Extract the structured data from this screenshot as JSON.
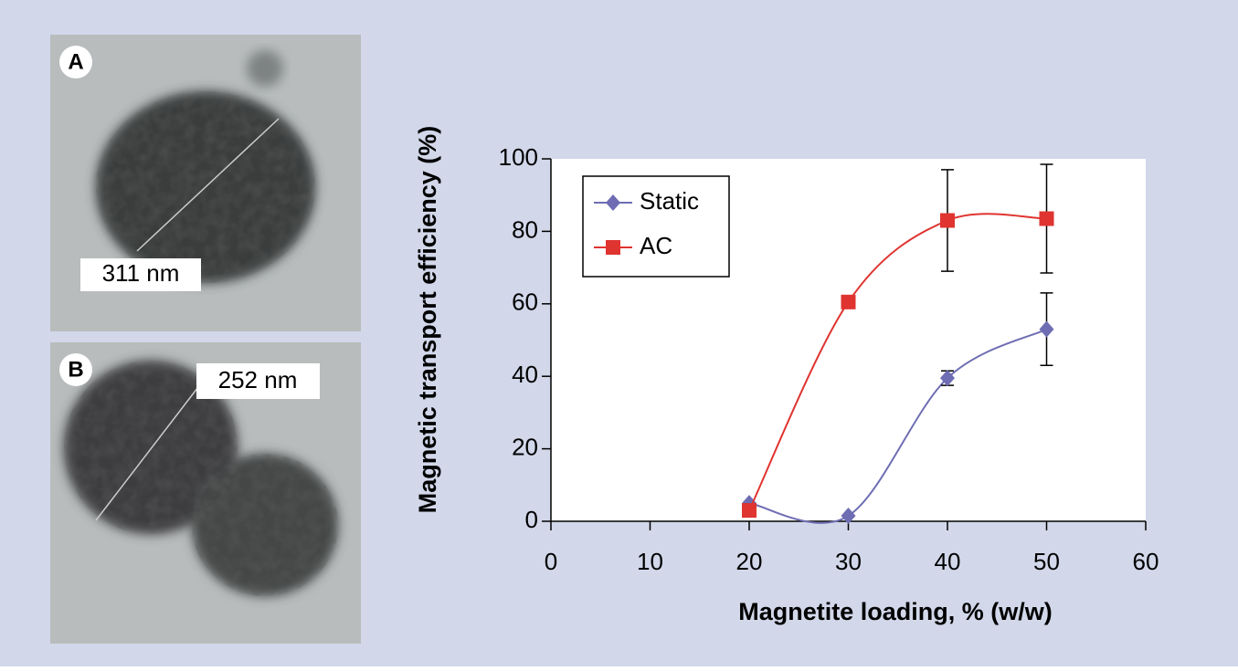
{
  "panels": [
    {
      "label": "A",
      "scale": "311 nm"
    },
    {
      "label": "B",
      "scale": "252 nm"
    }
  ],
  "chart_data": {
    "type": "line",
    "xlabel": "Magnetite loading, % (w/w)",
    "ylabel": "Magnetic transport efficiency (%)",
    "x": [
      20,
      30,
      40,
      50
    ],
    "series": [
      {
        "name": "Static",
        "color": "#6e6db3",
        "marker": "diamond",
        "values": [
          5,
          1.5,
          39.5,
          53
        ],
        "errors": [
          null,
          null,
          2,
          10
        ]
      },
      {
        "name": "AC",
        "color": "#df3430",
        "marker": "square",
        "values": [
          3,
          60.5,
          83,
          83.5
        ],
        "errors": [
          null,
          null,
          14,
          15
        ]
      }
    ],
    "xlim": [
      0,
      60
    ],
    "ylim": [
      0,
      100
    ],
    "xticks": [
      0,
      10,
      20,
      30,
      40,
      50,
      60
    ],
    "yticks": [
      0,
      20,
      40,
      60,
      80,
      100
    ],
    "legend": "upper left"
  }
}
